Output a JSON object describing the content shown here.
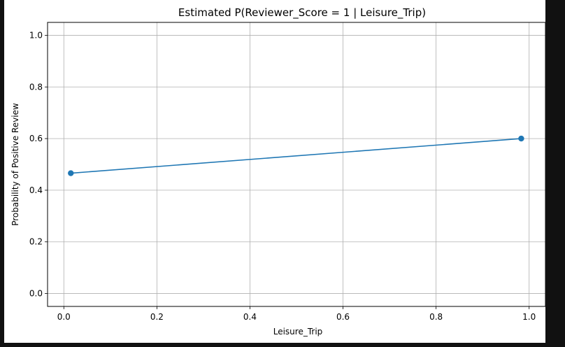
{
  "chart_data": {
    "type": "line",
    "title": "Estimated P(Reviewer_Score = 1 | Leisure_Trip)",
    "xlabel": "Leisure_Trip",
    "ylabel": "Probability of Positive Review",
    "xlim": [
      -0.035,
      1.035
    ],
    "ylim": [
      -0.05,
      1.05
    ],
    "x_ticks": [
      0.0,
      0.2,
      0.4,
      0.6,
      0.8,
      1.0
    ],
    "x_tick_labels": [
      "0.0",
      "0.2",
      "0.4",
      "0.6",
      "0.8",
      "1.0"
    ],
    "y_ticks": [
      0.0,
      0.2,
      0.4,
      0.6,
      0.8,
      1.0
    ],
    "y_tick_labels": [
      "0.0",
      "0.2",
      "0.4",
      "0.6",
      "0.8",
      "1.0"
    ],
    "grid": true,
    "series": [
      {
        "color": "#1f77b4",
        "marker": "circle",
        "x": [
          0.015,
          0.983
        ],
        "y": [
          0.466,
          0.6
        ]
      }
    ]
  }
}
